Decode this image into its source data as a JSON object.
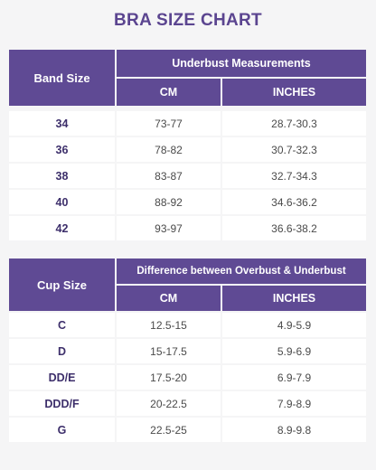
{
  "title": "BRA SIZE CHART",
  "band_table": {
    "col1_header": "Band Size",
    "group_header": "Underbust Measurements",
    "sub_headers": [
      "CM",
      "INCHES"
    ],
    "rows": [
      {
        "size": "34",
        "cm": "73-77",
        "inches": "28.7-30.3"
      },
      {
        "size": "36",
        "cm": "78-82",
        "inches": "30.7-32.3"
      },
      {
        "size": "38",
        "cm": "83-87",
        "inches": "32.7-34.3"
      },
      {
        "size": "40",
        "cm": "88-92",
        "inches": "34.6-36.2"
      },
      {
        "size": "42",
        "cm": "93-97",
        "inches": "36.6-38.2"
      }
    ]
  },
  "cup_table": {
    "col1_header": "Cup Size",
    "group_header": "Difference between Overbust & Underbust",
    "sub_headers": [
      "CM",
      "INCHES"
    ],
    "rows": [
      {
        "size": "C",
        "cm": "12.5-15",
        "inches": "4.9-5.9"
      },
      {
        "size": "D",
        "cm": "15-17.5",
        "inches": "5.9-6.9"
      },
      {
        "size": "DD/E",
        "cm": "17.5-20",
        "inches": "6.9-7.9"
      },
      {
        "size": "DDD/F",
        "cm": "20-22.5",
        "inches": "7.9-8.9"
      },
      {
        "size": "G",
        "cm": "22.5-25",
        "inches": "8.9-9.8"
      }
    ]
  }
}
